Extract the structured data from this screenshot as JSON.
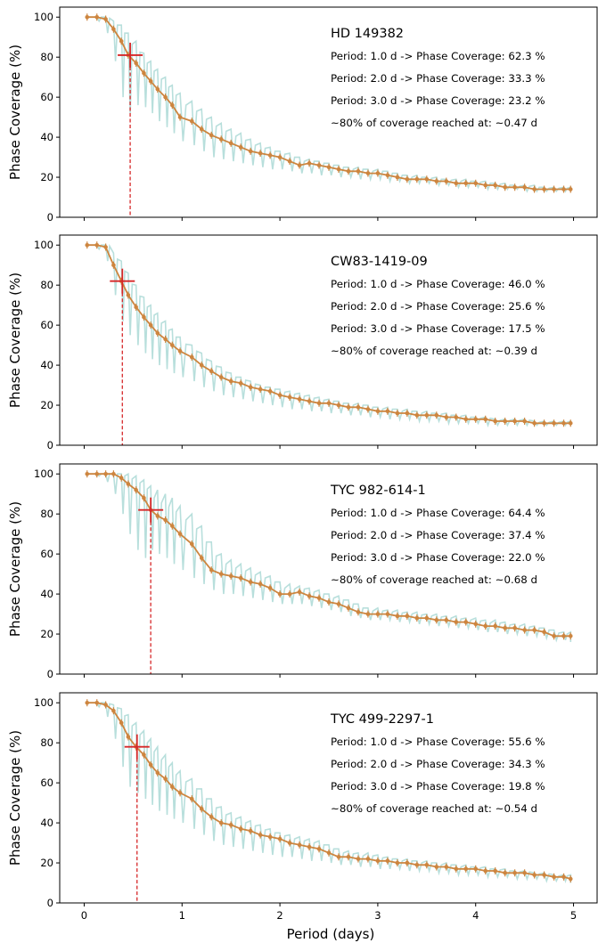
{
  "figure": {
    "xlabel": "Period (days)",
    "ylabel": "Phase Coverage (%)",
    "x_ticks": [
      "0",
      "1",
      "2",
      "3",
      "4",
      "5"
    ],
    "y_ticks": [
      "0",
      "20",
      "40",
      "60",
      "80",
      "100"
    ],
    "colors": {
      "binned_line": "#cd853f",
      "raw_band": "#b0dcd8",
      "marker": "#d62728"
    }
  },
  "chart_data": [
    {
      "type": "line",
      "target": "HD 149382",
      "lines": [
        "Period: 1.0 d -> Phase Coverage: 62.3 %",
        "Period: 2.0 d -> Phase Coverage: 33.3 %",
        "Period: 3.0 d -> Phase Coverage: 23.2 %",
        "~80% of coverage reached at: ~0.47 d"
      ],
      "threshold_x": 0.47,
      "threshold_y": 81,
      "xlim": [
        -0.25,
        5.25
      ],
      "ylim": [
        0,
        105
      ],
      "x_values": [
        0.03,
        0.13,
        0.22,
        0.3,
        0.38,
        0.45,
        0.53,
        0.61,
        0.68,
        0.75,
        0.83,
        0.9,
        0.98,
        1.1,
        1.2,
        1.3,
        1.4,
        1.5,
        1.6,
        1.7,
        1.8,
        1.9,
        2.0,
        2.1,
        2.2,
        2.3,
        2.4,
        2.5,
        2.6,
        2.7,
        2.8,
        2.9,
        3.0,
        3.1,
        3.2,
        3.3,
        3.4,
        3.5,
        3.6,
        3.7,
        3.8,
        3.9,
        4.0,
        4.1,
        4.2,
        4.3,
        4.4,
        4.5,
        4.6,
        4.7,
        4.8,
        4.9,
        4.97
      ],
      "y_values": [
        100,
        100,
        99,
        94,
        88,
        81,
        77,
        72,
        68,
        64,
        60,
        56,
        50,
        48,
        44,
        41,
        39,
        37,
        35,
        33,
        32,
        31,
        30,
        28,
        26,
        27,
        26,
        25,
        24,
        23,
        23,
        22,
        22,
        21,
        20,
        19,
        19,
        19,
        18,
        18,
        17,
        17,
        17,
        16,
        16,
        15,
        15,
        15,
        14,
        14,
        14,
        14,
        14
      ],
      "raw_min": [
        100,
        98,
        92,
        78,
        60,
        52,
        56,
        55,
        52,
        48,
        45,
        42,
        38,
        36,
        33,
        30,
        29,
        28,
        27,
        26,
        25,
        24,
        24,
        23,
        22,
        22,
        21,
        21,
        20,
        20,
        19,
        19,
        19,
        18,
        18,
        17,
        17,
        17,
        16,
        16,
        15,
        15,
        15,
        14,
        14,
        14,
        14,
        13,
        13,
        13,
        13,
        13,
        13
      ],
      "raw_max": [
        100,
        100,
        100,
        98,
        96,
        92,
        88,
        82,
        78,
        74,
        70,
        66,
        62,
        58,
        54,
        50,
        47,
        44,
        42,
        39,
        37,
        35,
        33,
        32,
        30,
        29,
        28,
        27,
        26,
        25,
        25,
        24,
        24,
        23,
        22,
        21,
        21,
        20,
        20,
        19,
        19,
        19,
        18,
        18,
        17,
        17,
        16,
        16,
        16,
        15,
        15,
        15,
        15
      ]
    },
    {
      "type": "line",
      "target": "CW83-1419-09",
      "lines": [
        "Period: 1.0 d -> Phase Coverage: 46.0 %",
        "Period: 2.0 d -> Phase Coverage: 25.6 %",
        "Period: 3.0 d -> Phase Coverage: 17.5 %",
        "~80% of coverage reached at: ~0.39 d"
      ],
      "threshold_x": 0.39,
      "threshold_y": 82,
      "xlim": [
        -0.25,
        5.25
      ],
      "ylim": [
        0,
        105
      ],
      "x_values": [
        0.03,
        0.13,
        0.22,
        0.3,
        0.38,
        0.45,
        0.53,
        0.61,
        0.68,
        0.75,
        0.83,
        0.9,
        0.98,
        1.1,
        1.2,
        1.3,
        1.4,
        1.5,
        1.6,
        1.7,
        1.8,
        1.9,
        2.0,
        2.1,
        2.2,
        2.3,
        2.4,
        2.5,
        2.6,
        2.7,
        2.8,
        2.9,
        3.0,
        3.1,
        3.2,
        3.3,
        3.4,
        3.5,
        3.6,
        3.7,
        3.8,
        3.9,
        4.0,
        4.1,
        4.2,
        4.3,
        4.4,
        4.5,
        4.6,
        4.7,
        4.8,
        4.9,
        4.97
      ],
      "y_values": [
        100,
        100,
        99,
        90,
        82,
        75,
        69,
        64,
        60,
        56,
        53,
        50,
        47,
        44,
        40,
        37,
        34,
        32,
        31,
        29,
        28,
        27,
        25,
        24,
        23,
        22,
        21,
        21,
        20,
        19,
        19,
        18,
        17,
        17,
        16,
        16,
        15,
        15,
        15,
        14,
        14,
        13,
        13,
        13,
        12,
        12,
        12,
        12,
        11,
        11,
        11,
        11,
        11
      ],
      "raw_min": [
        100,
        98,
        92,
        75,
        62,
        55,
        50,
        46,
        43,
        40,
        38,
        36,
        34,
        32,
        29,
        27,
        25,
        24,
        23,
        22,
        21,
        20,
        19,
        18,
        18,
        17,
        17,
        16,
        16,
        15,
        15,
        14,
        14,
        13,
        13,
        13,
        12,
        12,
        12,
        11,
        11,
        11,
        11,
        10,
        10,
        10,
        10,
        10,
        10,
        10,
        10,
        10,
        10
      ],
      "raw_max": [
        100,
        100,
        100,
        96,
        92,
        86,
        80,
        74,
        70,
        66,
        62,
        58,
        54,
        50,
        46,
        42,
        39,
        36,
        34,
        32,
        30,
        29,
        28,
        27,
        26,
        25,
        24,
        23,
        22,
        21,
        21,
        20,
        19,
        19,
        18,
        18,
        17,
        17,
        16,
        16,
        15,
        15,
        14,
        14,
        13,
        13,
        13,
        13,
        12,
        12,
        12,
        12,
        12
      ]
    },
    {
      "type": "line",
      "target": "TYC 982-614-1",
      "lines": [
        "Period: 1.0 d -> Phase Coverage: 64.4 %",
        "Period: 2.0 d -> Phase Coverage: 37.4 %",
        "Period: 3.0 d -> Phase Coverage: 22.0 %",
        "~80% of coverage reached at: ~0.68 d"
      ],
      "threshold_x": 0.68,
      "threshold_y": 82,
      "xlim": [
        -0.25,
        5.25
      ],
      "ylim": [
        0,
        105
      ],
      "x_values": [
        0.03,
        0.13,
        0.22,
        0.3,
        0.38,
        0.45,
        0.53,
        0.61,
        0.68,
        0.75,
        0.83,
        0.9,
        0.98,
        1.1,
        1.2,
        1.3,
        1.4,
        1.5,
        1.6,
        1.7,
        1.8,
        1.9,
        2.0,
        2.1,
        2.2,
        2.3,
        2.4,
        2.5,
        2.6,
        2.7,
        2.8,
        2.9,
        3.0,
        3.1,
        3.2,
        3.3,
        3.4,
        3.5,
        3.6,
        3.7,
        3.8,
        3.9,
        4.0,
        4.1,
        4.2,
        4.3,
        4.4,
        4.5,
        4.6,
        4.7,
        4.8,
        4.9,
        4.97
      ],
      "y_values": [
        100,
        100,
        100,
        100,
        98,
        95,
        92,
        88,
        82,
        79,
        77,
        74,
        70,
        65,
        58,
        52,
        50,
        49,
        48,
        46,
        45,
        43,
        40,
        40,
        41,
        39,
        38,
        36,
        35,
        33,
        31,
        30,
        30,
        30,
        29,
        29,
        28,
        28,
        27,
        27,
        26,
        26,
        25,
        24,
        24,
        23,
        23,
        22,
        22,
        21,
        19,
        19,
        19
      ],
      "raw_min": [
        100,
        99,
        96,
        90,
        80,
        70,
        62,
        58,
        62,
        60,
        58,
        55,
        52,
        48,
        45,
        42,
        40,
        40,
        39,
        38,
        37,
        36,
        35,
        35,
        35,
        34,
        33,
        32,
        31,
        29,
        28,
        27,
        27,
        27,
        26,
        26,
        25,
        25,
        24,
        24,
        23,
        23,
        22,
        21,
        21,
        20,
        20,
        19,
        19,
        18,
        17,
        17,
        16
      ],
      "raw_max": [
        100,
        100,
        100,
        100,
        100,
        100,
        99,
        97,
        94,
        92,
        90,
        88,
        84,
        80,
        74,
        66,
        60,
        57,
        55,
        53,
        51,
        49,
        46,
        45,
        44,
        43,
        42,
        40,
        39,
        37,
        35,
        33,
        33,
        32,
        32,
        31,
        31,
        30,
        30,
        29,
        29,
        28,
        28,
        27,
        27,
        26,
        25,
        25,
        24,
        23,
        22,
        21,
        21
      ]
    },
    {
      "type": "line",
      "target": "TYC 499-2297-1",
      "lines": [
        "Period: 1.0 d -> Phase Coverage: 55.6 %",
        "Period: 2.0 d -> Phase Coverage: 34.3 %",
        "Period: 3.0 d -> Phase Coverage: 19.8 %",
        "~80% of coverage reached at: ~0.54 d"
      ],
      "threshold_x": 0.54,
      "threshold_y": 78,
      "xlim": [
        -0.25,
        5.25
      ],
      "ylim": [
        0,
        105
      ],
      "x_values": [
        0.03,
        0.13,
        0.22,
        0.3,
        0.38,
        0.45,
        0.53,
        0.61,
        0.68,
        0.75,
        0.83,
        0.9,
        0.98,
        1.1,
        1.2,
        1.3,
        1.4,
        1.5,
        1.6,
        1.7,
        1.8,
        1.9,
        2.0,
        2.1,
        2.2,
        2.3,
        2.4,
        2.5,
        2.6,
        2.7,
        2.8,
        2.9,
        3.0,
        3.1,
        3.2,
        3.3,
        3.4,
        3.5,
        3.6,
        3.7,
        3.8,
        3.9,
        4.0,
        4.1,
        4.2,
        4.3,
        4.4,
        4.5,
        4.6,
        4.7,
        4.8,
        4.9,
        4.97
      ],
      "y_values": [
        100,
        100,
        99,
        96,
        90,
        83,
        78,
        74,
        69,
        65,
        62,
        58,
        55,
        52,
        47,
        43,
        40,
        39,
        37,
        36,
        34,
        33,
        32,
        30,
        29,
        28,
        27,
        25,
        23,
        23,
        22,
        22,
        21,
        21,
        20,
        20,
        19,
        19,
        18,
        18,
        17,
        17,
        17,
        16,
        16,
        15,
        15,
        15,
        14,
        14,
        13,
        13,
        12
      ],
      "raw_min": [
        100,
        98,
        93,
        82,
        68,
        58,
        55,
        52,
        49,
        46,
        44,
        42,
        40,
        37,
        34,
        31,
        29,
        28,
        27,
        26,
        25,
        24,
        23,
        23,
        22,
        21,
        21,
        20,
        19,
        19,
        18,
        18,
        17,
        17,
        17,
        16,
        16,
        16,
        15,
        15,
        14,
        14,
        14,
        13,
        13,
        13,
        12,
        12,
        12,
        11,
        11,
        11,
        10
      ],
      "raw_max": [
        100,
        100,
        100,
        99,
        97,
        94,
        90,
        86,
        82,
        78,
        74,
        70,
        66,
        62,
        57,
        52,
        48,
        45,
        43,
        41,
        39,
        37,
        35,
        34,
        33,
        32,
        31,
        29,
        27,
        26,
        25,
        25,
        24,
        23,
        22,
        22,
        21,
        21,
        20,
        20,
        19,
        19,
        18,
        18,
        17,
        17,
        16,
        16,
        15,
        15,
        14,
        14,
        14
      ]
    }
  ]
}
